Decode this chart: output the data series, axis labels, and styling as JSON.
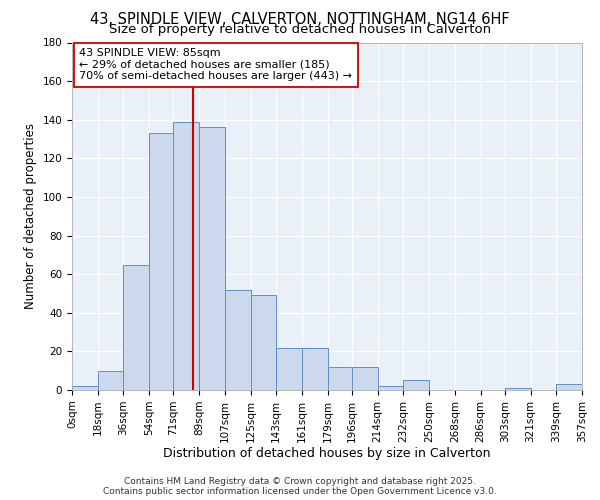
{
  "title_line1": "43, SPINDLE VIEW, CALVERTON, NOTTINGHAM, NG14 6HF",
  "title_line2": "Size of property relative to detached houses in Calverton",
  "xlabel": "Distribution of detached houses by size in Calverton",
  "ylabel": "Number of detached properties",
  "bins_left": [
    0,
    18,
    36,
    54,
    71,
    89,
    107,
    125,
    143,
    161,
    179,
    196,
    214,
    232,
    250,
    268,
    286,
    303,
    321,
    339
  ],
  "bin_width": 18,
  "bar_heights": [
    2,
    10,
    65,
    133,
    139,
    136,
    52,
    49,
    22,
    22,
    12,
    12,
    2,
    5,
    0,
    0,
    0,
    1,
    0,
    3
  ],
  "tick_labels": [
    "0sqm",
    "18sqm",
    "36sqm",
    "54sqm",
    "71sqm",
    "89sqm",
    "107sqm",
    "125sqm",
    "143sqm",
    "161sqm",
    "179sqm",
    "196sqm",
    "214sqm",
    "232sqm",
    "250sqm",
    "268sqm",
    "286sqm",
    "303sqm",
    "321sqm",
    "339sqm",
    "357sqm"
  ],
  "bar_fill": "#ccd9ed",
  "bar_edge": "#6090c8",
  "vline_x": 85,
  "vline_color": "#cc0000",
  "annotation_text": "43 SPINDLE VIEW: 85sqm\n← 29% of detached houses are smaller (185)\n70% of semi-detached houses are larger (443) →",
  "annotation_box_color": "#ffffff",
  "annotation_box_edge": "#cc0000",
  "ylim": [
    0,
    180
  ],
  "yticks": [
    0,
    20,
    40,
    60,
    80,
    100,
    120,
    140,
    160,
    180
  ],
  "bg_color": "#eaf0f8",
  "footer_line1": "Contains HM Land Registry data © Crown copyright and database right 2025.",
  "footer_line2": "Contains public sector information licensed under the Open Government Licence v3.0.",
  "title_fontsize": 10.5,
  "subtitle_fontsize": 9.5,
  "xlabel_fontsize": 9,
  "ylabel_fontsize": 8.5,
  "tick_fontsize": 7.5,
  "annot_fontsize": 8,
  "footer_fontsize": 6.5
}
